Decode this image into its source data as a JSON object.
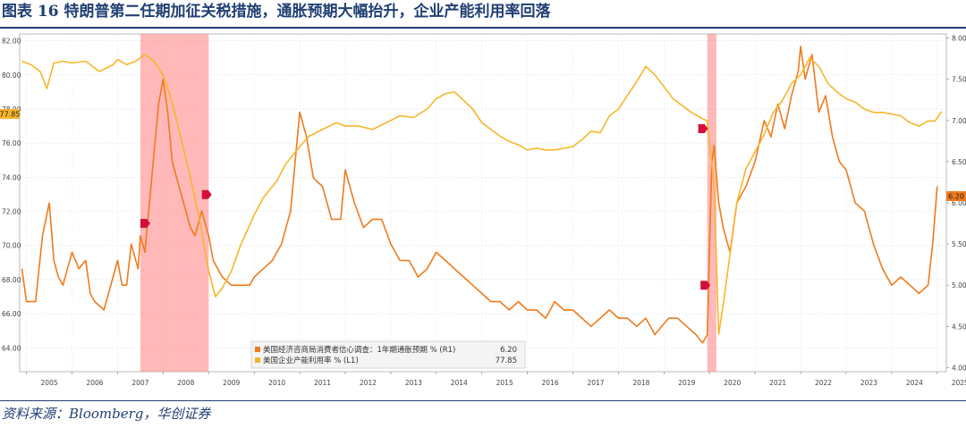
{
  "header": {
    "title": "图表 16 特朗普第二任期加征关税措施，通胀预期大幅抬升，企业产能利用率回落"
  },
  "footer": {
    "source": "资料来源：Bloomberg，华创证券"
  },
  "colors": {
    "series1": "#f07a1c",
    "series2": "#f8b52b",
    "recession": "#ff8080",
    "marker": "#d4103a"
  },
  "chart_data": {
    "type": "line",
    "x_range": [
      2004.85,
      2025.2
    ],
    "left_axis": {
      "range": [
        62.6,
        82.4
      ],
      "ticks": [
        "82.00",
        "80.00",
        "78.00",
        "76.00",
        "74.00",
        "72.00",
        "70.00",
        "68.00",
        "66.00",
        "64.00"
      ],
      "tick_values": [
        82,
        80,
        78,
        76,
        74,
        72,
        70,
        68,
        66,
        64
      ]
    },
    "right_axis": {
      "range": [
        3.95,
        8.05
      ],
      "ticks": [
        "8.00",
        "7.50",
        "7.00",
        "6.50",
        "6.00",
        "5.50",
        "5.00",
        "4.50",
        "4.00"
      ],
      "tick_values": [
        8,
        7.5,
        7,
        6.5,
        6,
        5.5,
        5,
        4.5,
        4
      ]
    },
    "x_ticks": [
      "2005",
      "2006",
      "2007",
      "2008",
      "2009",
      "2010",
      "2011",
      "2012",
      "2013",
      "2014",
      "2015",
      "2016",
      "2017",
      "2018",
      "2019",
      "2020",
      "2021",
      "2022",
      "2023",
      "2024",
      "2025"
    ],
    "x_tick_values": [
      2005,
      2006,
      2007,
      2008,
      2009,
      2010,
      2011,
      2012,
      2013,
      2014,
      2015,
      2016,
      2017,
      2018,
      2019,
      2020,
      2021,
      2022,
      2023,
      2024,
      2025
    ],
    "shaded_periods": [
      [
        2007.5,
        2009.0
      ],
      [
        2019.95,
        2020.15
      ]
    ],
    "left_last_label": "77.85",
    "right_last_label": "6.20",
    "legend": [
      {
        "name": "美国经济咨商局消费者信心调查：1年期通胀预期 % (R1)",
        "value": "6.20"
      },
      {
        "name": "美国企业产能利用率 % (L1)",
        "value": "77.85"
      }
    ],
    "series": [
      {
        "name": "美国经济咨商局消费者信心调查：1年期通胀预期 % (R1)",
        "axis": "right",
        "x": [
          2004.9,
          2005.0,
          2005.2,
          2005.35,
          2005.5,
          2005.6,
          2005.7,
          2005.8,
          2006.0,
          2006.15,
          2006.3,
          2006.4,
          2006.5,
          2006.7,
          2006.9,
          2007.0,
          2007.1,
          2007.2,
          2007.3,
          2007.45,
          2007.5,
          2007.6,
          2007.75,
          2007.9,
          2008.0,
          2008.1,
          2008.2,
          2008.3,
          2008.4,
          2008.5,
          2008.6,
          2008.7,
          2008.85,
          2009.0,
          2009.1,
          2009.3,
          2009.5,
          2009.7,
          2009.9,
          2010.0,
          2010.2,
          2010.4,
          2010.6,
          2010.8,
          2011.0,
          2011.15,
          2011.3,
          2011.5,
          2011.7,
          2011.9,
          2012.0,
          2012.2,
          2012.4,
          2012.6,
          2012.8,
          2013.0,
          2013.2,
          2013.4,
          2013.6,
          2013.8,
          2014.0,
          2014.2,
          2014.4,
          2014.6,
          2014.8,
          2015.0,
          2015.2,
          2015.4,
          2015.6,
          2015.8,
          2016.0,
          2016.2,
          2016.4,
          2016.6,
          2016.8,
          2017.0,
          2017.2,
          2017.4,
          2017.6,
          2017.8,
          2018.0,
          2018.2,
          2018.4,
          2018.6,
          2018.8,
          2018.95,
          2019.1,
          2019.3,
          2019.5,
          2019.7,
          2019.85,
          2019.95,
          2020.05,
          2020.1,
          2020.2,
          2020.3,
          2020.45,
          2020.6,
          2020.8,
          2021.0,
          2021.2,
          2021.35,
          2021.5,
          2021.65,
          2021.8,
          2021.95,
          2022.0,
          2022.1,
          2022.25,
          2022.4,
          2022.55,
          2022.7,
          2022.85,
          2023.0,
          2023.2,
          2023.4,
          2023.6,
          2023.8,
          2024.0,
          2024.2,
          2024.4,
          2024.6,
          2024.8,
          2024.9,
          2025.0
        ],
        "y": [
          5.2,
          4.8,
          4.8,
          5.6,
          6.0,
          5.3,
          5.1,
          5.0,
          5.4,
          5.2,
          5.3,
          4.9,
          4.8,
          4.7,
          5.1,
          5.3,
          5.0,
          5.0,
          5.5,
          5.2,
          5.6,
          5.4,
          6.3,
          7.2,
          7.5,
          7.1,
          6.5,
          6.3,
          6.1,
          5.9,
          5.7,
          5.6,
          5.9,
          5.6,
          5.3,
          5.1,
          5.0,
          5.0,
          5.0,
          5.1,
          5.2,
          5.3,
          5.5,
          5.9,
          7.1,
          6.8,
          6.3,
          6.2,
          5.8,
          5.8,
          6.4,
          6.0,
          5.7,
          5.8,
          5.8,
          5.5,
          5.3,
          5.3,
          5.1,
          5.2,
          5.4,
          5.3,
          5.2,
          5.1,
          5.0,
          4.9,
          4.8,
          4.8,
          4.7,
          4.8,
          4.7,
          4.7,
          4.6,
          4.8,
          4.7,
          4.7,
          4.6,
          4.5,
          4.6,
          4.7,
          4.6,
          4.6,
          4.5,
          4.6,
          4.4,
          4.5,
          4.6,
          4.6,
          4.5,
          4.4,
          4.3,
          4.4,
          6.5,
          6.7,
          6.0,
          5.7,
          5.4,
          6.0,
          6.2,
          6.5,
          7.0,
          6.8,
          7.2,
          6.9,
          7.3,
          7.6,
          7.9,
          7.5,
          7.8,
          7.1,
          7.3,
          6.8,
          6.5,
          6.4,
          6.0,
          5.9,
          5.5,
          5.2,
          5.0,
          5.1,
          5.0,
          4.9,
          5.0,
          5.5,
          6.2
        ]
      },
      {
        "name": "美国企业产能利用率 % (L1)",
        "axis": "left",
        "x": [
          2004.9,
          2005.1,
          2005.3,
          2005.45,
          2005.6,
          2005.8,
          2006.0,
          2006.3,
          2006.6,
          2006.9,
          2007.0,
          2007.2,
          2007.4,
          2007.6,
          2007.8,
          2008.0,
          2008.2,
          2008.4,
          2008.6,
          2008.8,
          2009.0,
          2009.15,
          2009.3,
          2009.5,
          2009.7,
          2010.0,
          2010.2,
          2010.5,
          2010.7,
          2011.0,
          2011.2,
          2011.5,
          2011.8,
          2012.0,
          2012.3,
          2012.6,
          2012.9,
          2013.2,
          2013.5,
          2013.8,
          2014.0,
          2014.2,
          2014.4,
          2014.6,
          2014.8,
          2015.0,
          2015.2,
          2015.4,
          2015.6,
          2015.8,
          2016.0,
          2016.2,
          2016.4,
          2016.6,
          2016.8,
          2017.0,
          2017.2,
          2017.4,
          2017.6,
          2017.8,
          2018.0,
          2018.2,
          2018.4,
          2018.6,
          2018.8,
          2019.0,
          2019.2,
          2019.4,
          2019.6,
          2019.8,
          2019.95,
          2020.1,
          2020.2,
          2020.3,
          2020.45,
          2020.6,
          2020.8,
          2021.0,
          2021.2,
          2021.4,
          2021.6,
          2021.8,
          2022.0,
          2022.2,
          2022.4,
          2022.6,
          2022.8,
          2023.0,
          2023.2,
          2023.4,
          2023.6,
          2023.8,
          2024.0,
          2024.2,
          2024.4,
          2024.6,
          2024.8,
          2024.95,
          2025.1
        ],
        "y": [
          80.8,
          80.6,
          80.2,
          79.2,
          80.7,
          80.8,
          80.7,
          80.8,
          80.2,
          80.6,
          80.9,
          80.6,
          80.8,
          81.2,
          80.8,
          80.0,
          78.4,
          76.2,
          74.0,
          71.5,
          68.5,
          67.0,
          67.5,
          68.5,
          70.0,
          71.8,
          72.8,
          73.8,
          74.8,
          75.8,
          76.4,
          76.8,
          77.2,
          77.0,
          77.0,
          76.8,
          77.2,
          77.6,
          77.5,
          78.0,
          78.6,
          78.9,
          79.0,
          78.5,
          78.0,
          77.2,
          76.8,
          76.4,
          76.1,
          75.9,
          75.6,
          75.7,
          75.6,
          75.6,
          75.7,
          75.8,
          76.2,
          76.7,
          76.6,
          77.6,
          78.0,
          78.8,
          79.6,
          80.5,
          80.0,
          79.3,
          78.6,
          78.2,
          77.8,
          77.5,
          77.3,
          73.5,
          64.8,
          66.5,
          69.5,
          72.5,
          74.5,
          75.5,
          76.5,
          77.8,
          78.5,
          79.5,
          80.0,
          81.0,
          80.5,
          79.5,
          79.0,
          78.6,
          78.4,
          78.0,
          77.8,
          77.8,
          77.7,
          77.6,
          77.2,
          77.0,
          77.3,
          77.3,
          77.85
        ]
      }
    ]
  }
}
